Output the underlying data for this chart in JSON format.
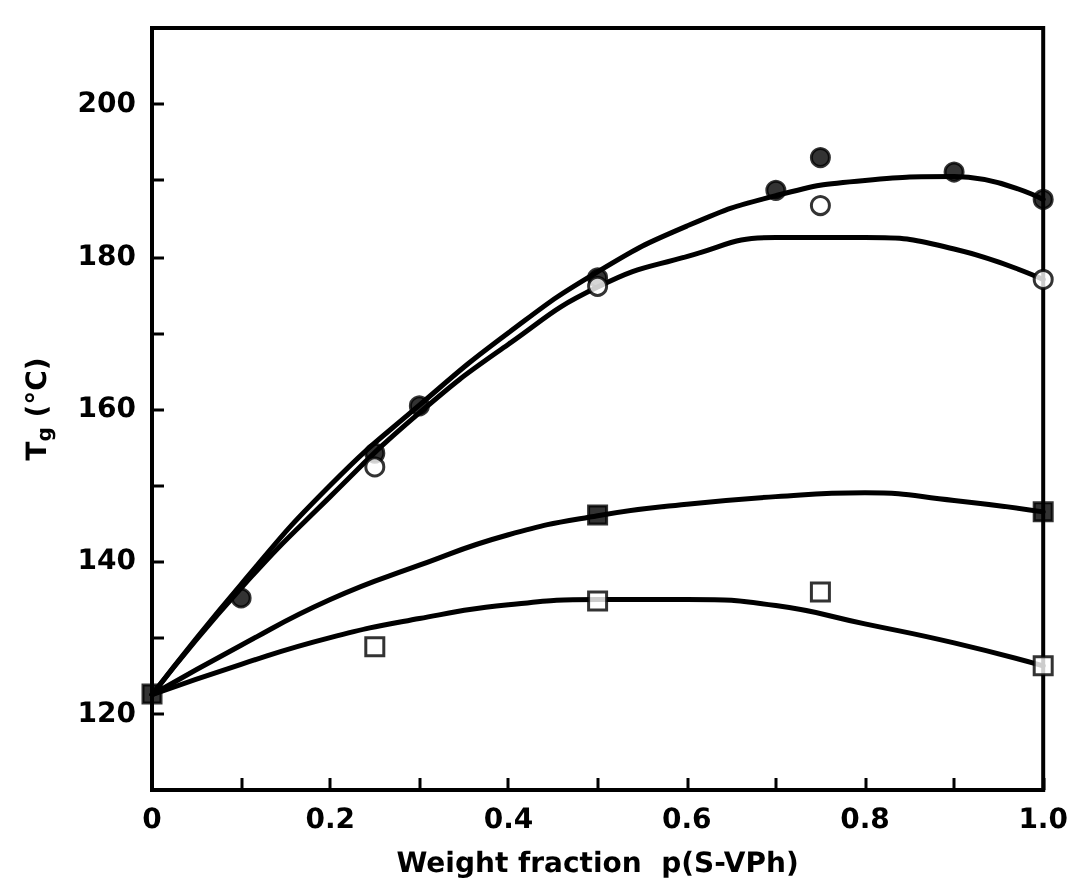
{
  "chart_data": {
    "type": "scatter",
    "xlabel": "Weight fraction  p(S-VPh)",
    "ylabel": "T$_{g}$ (°C)",
    "xlim": [
      0,
      1.0
    ],
    "ylim": [
      110,
      210
    ],
    "xticks": [
      0,
      {
        "value": 0.1,
        "label": null
      },
      0.2,
      {
        "value": 0.3,
        "label": null
      },
      0.4,
      {
        "value": 0.5,
        "label": null
      },
      0.6,
      {
        "value": 0.7,
        "label": null
      },
      0.8,
      {
        "value": 0.9,
        "label": null
      },
      {
        "value": 1.0,
        "label": "1.0"
      }
    ],
    "yticks": [
      {
        "value": 110,
        "label": null
      },
      120,
      {
        "value": 130,
        "label": null
      },
      140,
      {
        "value": 150,
        "label": null
      },
      160,
      {
        "value": 170,
        "label": null
      },
      180,
      {
        "value": 190,
        "label": null
      },
      200
    ],
    "grid": false,
    "series": [
      {
        "marker": "circle",
        "color": "#000000",
        "x": [
          0.1,
          0.25,
          0.3,
          0.5,
          0.7,
          0.75,
          0.9,
          1.0
        ],
        "values": [
          135.2,
          154.2,
          160.4,
          177.2,
          188.7,
          193.0,
          191.1,
          187.5
        ]
      },
      {
        "marker": "circle",
        "color": "#ffffff",
        "x": [
          0.25,
          0.5,
          0.75,
          1.0
        ],
        "values": [
          152.4,
          176.1,
          186.7,
          177.0
        ]
      },
      {
        "marker": "square",
        "color": "#000000",
        "x": [
          0,
          0.5,
          1.0
        ],
        "values": [
          122.6,
          146.1,
          146.5
        ]
      },
      {
        "marker": "square",
        "color": "#ffffff",
        "x": [
          0.25,
          0.5,
          0.75,
          1.0
        ],
        "values": [
          128.8,
          134.8,
          136.0,
          126.3
        ]
      },
      {
        "type": "line",
        "marker": "none",
        "line_style": "solid",
        "color": "#000000",
        "x": [
          0,
          0.1,
          0.2,
          0.3,
          0.4,
          0.5,
          0.6,
          0.7,
          0.8,
          0.9,
          1.0
        ],
        "values": [
          122.5,
          137,
          150,
          160.5,
          170,
          178,
          184,
          188,
          190,
          190.5,
          187.5
        ]
      },
      {
        "type": "line",
        "marker": "none",
        "line_style": "solid",
        "color": "#000000",
        "x": [
          0,
          0.1,
          0.2,
          0.3,
          0.4,
          0.5,
          0.6,
          0.7,
          0.8,
          0.9,
          1.0
        ],
        "values": [
          122.5,
          136.5,
          148.5,
          159.5,
          168.5,
          176,
          180,
          182.5,
          182.5,
          181,
          177
        ]
      },
      {
        "type": "line",
        "marker": "none",
        "line_style": "solid",
        "color": "#000000",
        "x": [
          0,
          0.1,
          0.2,
          0.3,
          0.4,
          0.5,
          0.6,
          0.7,
          0.8,
          0.9,
          1.0
        ],
        "values": [
          122.5,
          129,
          135,
          139.5,
          143.5,
          146,
          147.5,
          148.5,
          149,
          148,
          146.5
        ]
      },
      {
        "type": "line",
        "marker": "none",
        "line_style": "solid",
        "color": "#000000",
        "x": [
          0,
          0.1,
          0.2,
          0.3,
          0.4,
          0.5,
          0.6,
          0.7,
          0.8,
          0.9,
          1.0
        ],
        "values": [
          122.5,
          126.5,
          130,
          132.5,
          134.3,
          135,
          135,
          134.2,
          131.8,
          129.3,
          126.3
        ]
      }
    ]
  }
}
